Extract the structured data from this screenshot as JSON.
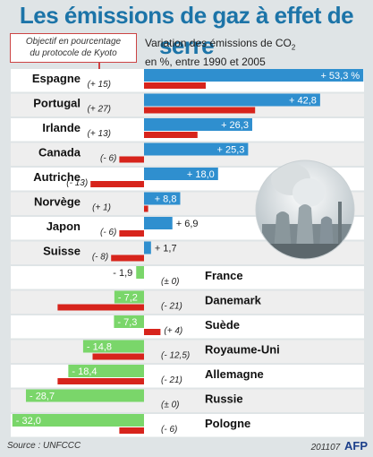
{
  "chart_data": {
    "type": "bar",
    "title": "Les émissions de gaz à effet de serre",
    "legend": {
      "objective_label": [
        "Objectif en pourcentage",
        "du protocole de Kyoto"
      ],
      "variation_label": "Variation des émissions de CO",
      "variation_label_sub": "2",
      "variation_label_line2": "en %, entre 1990 et 2005"
    },
    "categories": [
      "Espagne",
      "Portugal",
      "Irlande",
      "Canada",
      "Autriche",
      "Norvège",
      "Japon",
      "Suisse",
      "France",
      "Danemark",
      "Suède",
      "Royaume-Uni",
      "Allemagne",
      "Russie",
      "Pologne"
    ],
    "series": [
      {
        "key": "variation",
        "values": [
          53.3,
          42.8,
          26.3,
          25.3,
          18.0,
          8.8,
          6.9,
          1.7,
          -1.9,
          -7.2,
          -7.3,
          -14.8,
          -18.4,
          -28.7,
          -32.0
        ],
        "labels": [
          "+ 53,3 %",
          "+ 42,8",
          "+ 26,3",
          "+ 25,3",
          "+ 18,0",
          "+ 8,8",
          "+ 6,9",
          "+ 1,7",
          "- 1,9",
          "- 7,2",
          "- 7,3",
          "- 14,8",
          "- 18,4",
          "- 28,7",
          "- 32,0"
        ]
      },
      {
        "key": "kyoto_objective",
        "values": [
          15,
          27,
          13,
          -6,
          -13,
          1,
          -6,
          -8,
          0,
          -21,
          4,
          -12.5,
          -21,
          0,
          -6
        ],
        "labels": [
          "(+ 15)",
          "(+ 27)",
          "(+ 13)",
          "(- 6)",
          "(- 13)",
          "(+ 1)",
          "(- 6)",
          "(- 8)",
          "(± 0)",
          "(- 21)",
          "(+ 4)",
          "(- 12,5)",
          "(- 21)",
          "(± 0)",
          "(- 6)"
        ]
      }
    ],
    "colors": {
      "title": "#1c74a8",
      "positive_bar": "#2f8fcf",
      "negative_bar": "#7ad66a",
      "objective_bar": "#d7241c",
      "row_light": "#ffffff",
      "row_dark": "#eeeeee"
    },
    "xlim": [
      -35,
      55
    ]
  },
  "footer": {
    "source": "Source : UNFCCC",
    "date": "201107",
    "agency": "AFP"
  }
}
